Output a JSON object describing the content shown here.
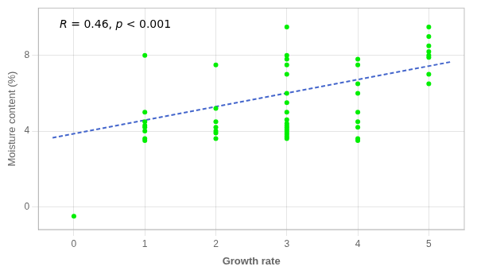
{
  "chart_data": {
    "type": "scatter",
    "annotation": "R = 0.46, p < 0.001",
    "xlabel": "Growth rate",
    "ylabel": "Moisture content (%)",
    "series": [
      {
        "type": "scatter",
        "color": "#00ee00",
        "marker": "circle",
        "x": [
          0,
          1,
          1,
          1,
          1,
          1,
          1,
          1,
          1,
          2,
          2,
          2,
          2,
          2,
          2,
          2,
          3,
          3,
          3,
          3,
          3,
          3,
          3,
          3,
          3,
          3,
          3,
          3,
          3,
          3,
          3,
          3,
          3,
          3,
          4,
          4,
          4,
          4,
          4,
          4,
          4,
          4,
          4,
          5,
          5,
          5,
          5,
          5,
          5,
          5,
          5
        ],
        "values": [
          -0.5,
          3.5,
          3.6,
          4.0,
          4.2,
          4.3,
          4.5,
          5.0,
          8.0,
          3.6,
          3.9,
          4.0,
          4.2,
          4.5,
          5.2,
          7.5,
          3.6,
          3.7,
          3.8,
          3.9,
          4.0,
          4.1,
          4.2,
          4.3,
          4.4,
          4.6,
          5.0,
          5.5,
          6.0,
          7.0,
          7.5,
          7.8,
          8.0,
          9.5,
          3.5,
          3.6,
          4.2,
          4.5,
          5.0,
          6.0,
          6.5,
          7.5,
          7.8,
          8.0,
          8.5,
          9.0,
          9.5,
          8.2,
          7.9,
          7.0,
          6.5
        ]
      },
      {
        "type": "line",
        "color": "#4466cc",
        "line_style": "dashed",
        "x": [
          -0.3,
          5.3
        ],
        "values": [
          3.65,
          7.65
        ]
      }
    ],
    "xlim": [
      -0.5,
      5.5
    ],
    "ylim": [
      -1.2,
      10.5
    ],
    "xticks": [
      0,
      1,
      2,
      3,
      4,
      5
    ],
    "yticks": [
      0,
      4,
      8
    ],
    "grid": true
  }
}
